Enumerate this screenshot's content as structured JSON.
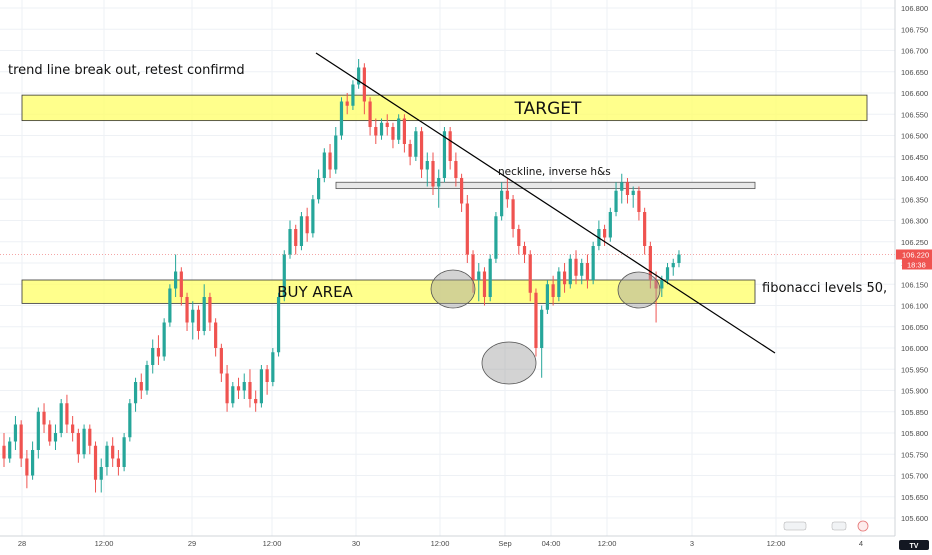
{
  "chart_data": {
    "type": "candlestick",
    "title": "",
    "xlabel": "",
    "ylabel": "",
    "ylim": [
      105.55,
      106.825
    ],
    "grid": true,
    "y_ticks": [
      "105.600",
      "105.650",
      "105.700",
      "105.750",
      "105.800",
      "105.850",
      "105.900",
      "105.950",
      "106.000",
      "106.050",
      "106.100",
      "106.150",
      "106.200",
      "106.250",
      "106.300",
      "106.350",
      "106.400",
      "106.450",
      "106.500",
      "106.550",
      "106.600",
      "106.650",
      "106.700",
      "106.750",
      "106.800"
    ],
    "x_ticks": [
      "28",
      "12:00",
      "29",
      "12:00",
      "30",
      "12:00",
      "Sep",
      "04:00",
      "12:00",
      "3",
      "12:00",
      "4"
    ],
    "last_price": "106.220",
    "countdown": "18:38",
    "colors": {
      "up": "#26a69a",
      "down": "#ef5350",
      "zone_fill": "#ffff66",
      "neckline_fill": "#e6e6e6",
      "marker_fill": "#9e9e9e",
      "trendline": "#000000"
    },
    "candles": [
      [
        105.77,
        105.8,
        105.72,
        105.74
      ],
      [
        105.74,
        105.79,
        105.73,
        105.78
      ],
      [
        105.78,
        105.84,
        105.76,
        105.82
      ],
      [
        105.82,
        105.83,
        105.72,
        105.74
      ],
      [
        105.74,
        105.76,
        105.67,
        105.7
      ],
      [
        105.7,
        105.78,
        105.69,
        105.76
      ],
      [
        105.76,
        105.86,
        105.74,
        105.85
      ],
      [
        105.85,
        105.87,
        105.8,
        105.82
      ],
      [
        105.82,
        105.83,
        105.77,
        105.78
      ],
      [
        105.78,
        105.82,
        105.76,
        105.8
      ],
      [
        105.8,
        105.88,
        105.79,
        105.87
      ],
      [
        105.87,
        105.89,
        105.8,
        105.82
      ],
      [
        105.82,
        105.84,
        105.78,
        105.8
      ],
      [
        105.8,
        105.81,
        105.73,
        105.75
      ],
      [
        105.75,
        105.82,
        105.74,
        105.81
      ],
      [
        105.81,
        105.82,
        105.75,
        105.77
      ],
      [
        105.77,
        105.78,
        105.66,
        105.69
      ],
      [
        105.69,
        105.74,
        105.66,
        105.72
      ],
      [
        105.72,
        105.78,
        105.7,
        105.77
      ],
      [
        105.77,
        105.79,
        105.72,
        105.74
      ],
      [
        105.74,
        105.76,
        105.7,
        105.72
      ],
      [
        105.72,
        105.8,
        105.71,
        105.79
      ],
      [
        105.79,
        105.88,
        105.78,
        105.87
      ],
      [
        105.87,
        105.93,
        105.85,
        105.92
      ],
      [
        105.92,
        105.94,
        105.88,
        105.9
      ],
      [
        105.9,
        105.97,
        105.89,
        105.96
      ],
      [
        105.96,
        106.02,
        105.94,
        106.0
      ],
      [
        106.0,
        106.03,
        105.96,
        105.98
      ],
      [
        105.98,
        106.07,
        105.97,
        106.06
      ],
      [
        106.06,
        106.15,
        106.05,
        106.14
      ],
      [
        106.14,
        106.22,
        106.12,
        106.18
      ],
      [
        106.18,
        106.19,
        106.1,
        106.12
      ],
      [
        106.12,
        106.13,
        106.04,
        106.06
      ],
      [
        106.06,
        106.11,
        106.02,
        106.09
      ],
      [
        106.09,
        106.1,
        106.02,
        106.04
      ],
      [
        106.04,
        106.15,
        106.03,
        106.12
      ],
      [
        106.12,
        106.13,
        106.04,
        106.06
      ],
      [
        106.06,
        106.07,
        105.98,
        106.0
      ],
      [
        106.0,
        106.01,
        105.92,
        105.94
      ],
      [
        105.94,
        105.96,
        105.85,
        105.87
      ],
      [
        105.87,
        105.92,
        105.86,
        105.91
      ],
      [
        105.91,
        105.93,
        105.88,
        105.9
      ],
      [
        105.9,
        105.94,
        105.88,
        105.92
      ],
      [
        105.92,
        105.95,
        105.86,
        105.88
      ],
      [
        105.88,
        105.9,
        105.85,
        105.87
      ],
      [
        105.87,
        105.96,
        105.86,
        105.95
      ],
      [
        105.95,
        105.96,
        105.89,
        105.92
      ],
      [
        105.92,
        106.0,
        105.91,
        105.99
      ],
      [
        105.99,
        106.13,
        105.98,
        106.12
      ],
      [
        106.12,
        106.23,
        106.11,
        106.22
      ],
      [
        106.22,
        106.3,
        106.21,
        106.28
      ],
      [
        106.28,
        106.29,
        106.22,
        106.24
      ],
      [
        106.24,
        106.32,
        106.23,
        106.31
      ],
      [
        106.31,
        106.33,
        106.25,
        106.27
      ],
      [
        106.27,
        106.36,
        106.26,
        106.35
      ],
      [
        106.35,
        106.42,
        106.34,
        106.4
      ],
      [
        106.4,
        106.47,
        106.39,
        106.46
      ],
      [
        106.46,
        106.48,
        106.4,
        106.42
      ],
      [
        106.42,
        106.52,
        106.41,
        106.5
      ],
      [
        106.5,
        106.59,
        106.49,
        106.58
      ],
      [
        106.58,
        106.6,
        106.55,
        106.57
      ],
      [
        106.57,
        106.63,
        106.56,
        106.62
      ],
      [
        106.62,
        106.68,
        106.61,
        106.66
      ],
      [
        106.66,
        106.67,
        106.55,
        106.58
      ],
      [
        106.58,
        106.59,
        106.5,
        106.52
      ],
      [
        106.52,
        106.54,
        106.48,
        106.5
      ],
      [
        106.5,
        106.54,
        106.49,
        106.53
      ],
      [
        106.53,
        106.55,
        106.5,
        106.52
      ],
      [
        106.52,
        106.53,
        106.47,
        106.49
      ],
      [
        106.49,
        106.55,
        106.48,
        106.54
      ],
      [
        106.54,
        106.55,
        106.46,
        106.48
      ],
      [
        106.48,
        106.49,
        106.43,
        106.45
      ],
      [
        106.45,
        106.52,
        106.44,
        106.51
      ],
      [
        106.51,
        106.52,
        106.4,
        106.42
      ],
      [
        106.42,
        106.46,
        106.38,
        106.44
      ],
      [
        106.44,
        106.46,
        106.36,
        106.38
      ],
      [
        106.38,
        106.42,
        106.33,
        106.4
      ],
      [
        106.4,
        106.52,
        106.39,
        106.51
      ],
      [
        106.51,
        106.52,
        106.42,
        106.44
      ],
      [
        106.44,
        106.46,
        106.38,
        106.4
      ],
      [
        106.4,
        106.41,
        106.32,
        106.34
      ],
      [
        106.34,
        106.36,
        106.2,
        106.22
      ],
      [
        106.22,
        106.23,
        106.13,
        106.16
      ],
      [
        106.16,
        106.2,
        106.11,
        106.18
      ],
      [
        106.18,
        106.19,
        106.1,
        106.12
      ],
      [
        106.12,
        106.22,
        106.11,
        106.21
      ],
      [
        106.21,
        106.32,
        106.2,
        106.31
      ],
      [
        106.31,
        106.39,
        106.3,
        106.37
      ],
      [
        106.37,
        106.4,
        106.33,
        106.35
      ],
      [
        106.35,
        106.36,
        106.26,
        106.28
      ],
      [
        106.28,
        106.29,
        106.22,
        106.24
      ],
      [
        106.24,
        106.25,
        106.2,
        106.22
      ],
      [
        106.22,
        106.23,
        106.11,
        106.13
      ],
      [
        106.13,
        106.14,
        105.98,
        106.0
      ],
      [
        106.0,
        106.1,
        105.93,
        106.09
      ],
      [
        106.09,
        106.16,
        106.08,
        106.15
      ],
      [
        106.15,
        106.17,
        106.1,
        106.12
      ],
      [
        106.12,
        106.19,
        106.11,
        106.18
      ],
      [
        106.18,
        106.2,
        106.13,
        106.15
      ],
      [
        106.15,
        106.22,
        106.14,
        106.21
      ],
      [
        106.21,
        106.23,
        106.15,
        106.17
      ],
      [
        106.17,
        106.21,
        106.15,
        106.2
      ],
      [
        106.2,
        106.22,
        106.14,
        106.16
      ],
      [
        106.16,
        106.25,
        106.15,
        106.24
      ],
      [
        106.24,
        106.3,
        106.23,
        106.28
      ],
      [
        106.28,
        106.29,
        106.24,
        106.26
      ],
      [
        106.26,
        106.33,
        106.25,
        106.32
      ],
      [
        106.32,
        106.39,
        106.31,
        106.37
      ],
      [
        106.37,
        106.41,
        106.34,
        106.39
      ],
      [
        106.39,
        106.4,
        106.34,
        106.36
      ],
      [
        106.36,
        106.38,
        106.33,
        106.37
      ],
      [
        106.37,
        106.38,
        106.3,
        106.32
      ],
      [
        106.32,
        106.33,
        106.22,
        106.24
      ],
      [
        106.24,
        106.25,
        106.14,
        106.16
      ],
      [
        106.16,
        106.18,
        106.06,
        106.14
      ],
      [
        106.14,
        106.17,
        106.12,
        106.16
      ],
      [
        106.16,
        106.2,
        106.15,
        106.19
      ],
      [
        106.19,
        106.21,
        106.17,
        106.2
      ],
      [
        106.2,
        106.23,
        106.19,
        106.22
      ]
    ],
    "zones": [
      {
        "label": "TARGET",
        "y_top": 106.595,
        "y_bottom": 106.535
      },
      {
        "label": "BUY AREA",
        "y_top": 106.16,
        "y_bottom": 106.105
      },
      {
        "label": "",
        "y_top": 106.39,
        "y_bottom": 106.375
      }
    ],
    "annotations": {
      "title_note": "trend line break out, retest confirmd",
      "neckline": "neckline, inverse h&s",
      "fibonacci": "fibonacci levels 50,"
    },
    "markers": {
      "tv_logo": "TV"
    }
  }
}
